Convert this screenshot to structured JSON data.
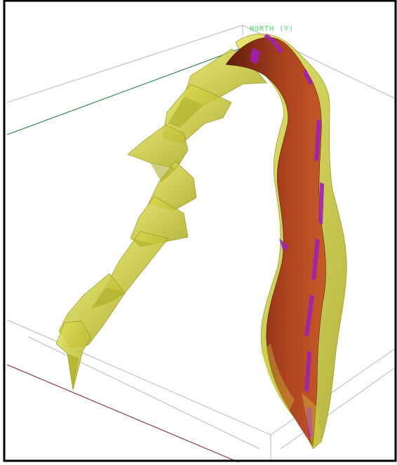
{
  "viewer": {
    "axis_label": "NORTH (Y)",
    "colors": {
      "background": "#ffffff",
      "frame": "#000000",
      "box_edges": "#b8b8b8",
      "axis_x": "#7a1f3a",
      "axis_y": "#1f7a3a",
      "axis_label": "#44dd66",
      "outer_surface": "#c8c832",
      "outer_surface_dark": "#9c9c1e",
      "inner_surface": "#a8401e",
      "inner_surface_dark": "#6e2410",
      "highlight": "#a020b0"
    }
  }
}
